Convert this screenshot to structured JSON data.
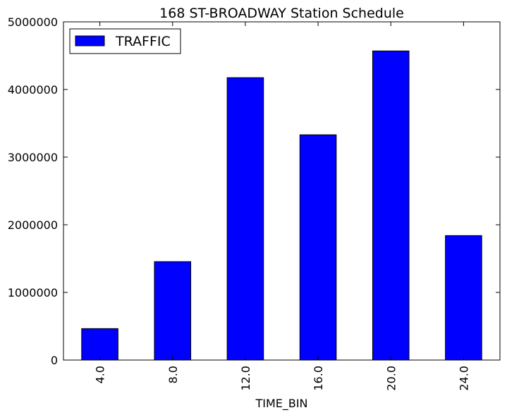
{
  "chart_data": {
    "type": "bar",
    "title": "168 ST-BROADWAY Station Schedule",
    "xlabel": "TIME_BIN",
    "ylabel": "",
    "categories": [
      "4.0",
      "8.0",
      "12.0",
      "16.0",
      "20.0",
      "24.0"
    ],
    "series": [
      {
        "name": "TRAFFIC",
        "color": "#0000ff",
        "values": [
          465000,
          1455000,
          4175000,
          3330000,
          4570000,
          1840000
        ]
      }
    ],
    "ylim": [
      0,
      5000000
    ],
    "yticks": [
      0,
      1000000,
      2000000,
      3000000,
      4000000,
      5000000
    ],
    "ytick_labels": [
      "0",
      "1000000",
      "2000000",
      "3000000",
      "4000000",
      "5000000"
    ],
    "grid": false,
    "legend_position": "top-left",
    "x_tick_rotation": "vertical"
  }
}
